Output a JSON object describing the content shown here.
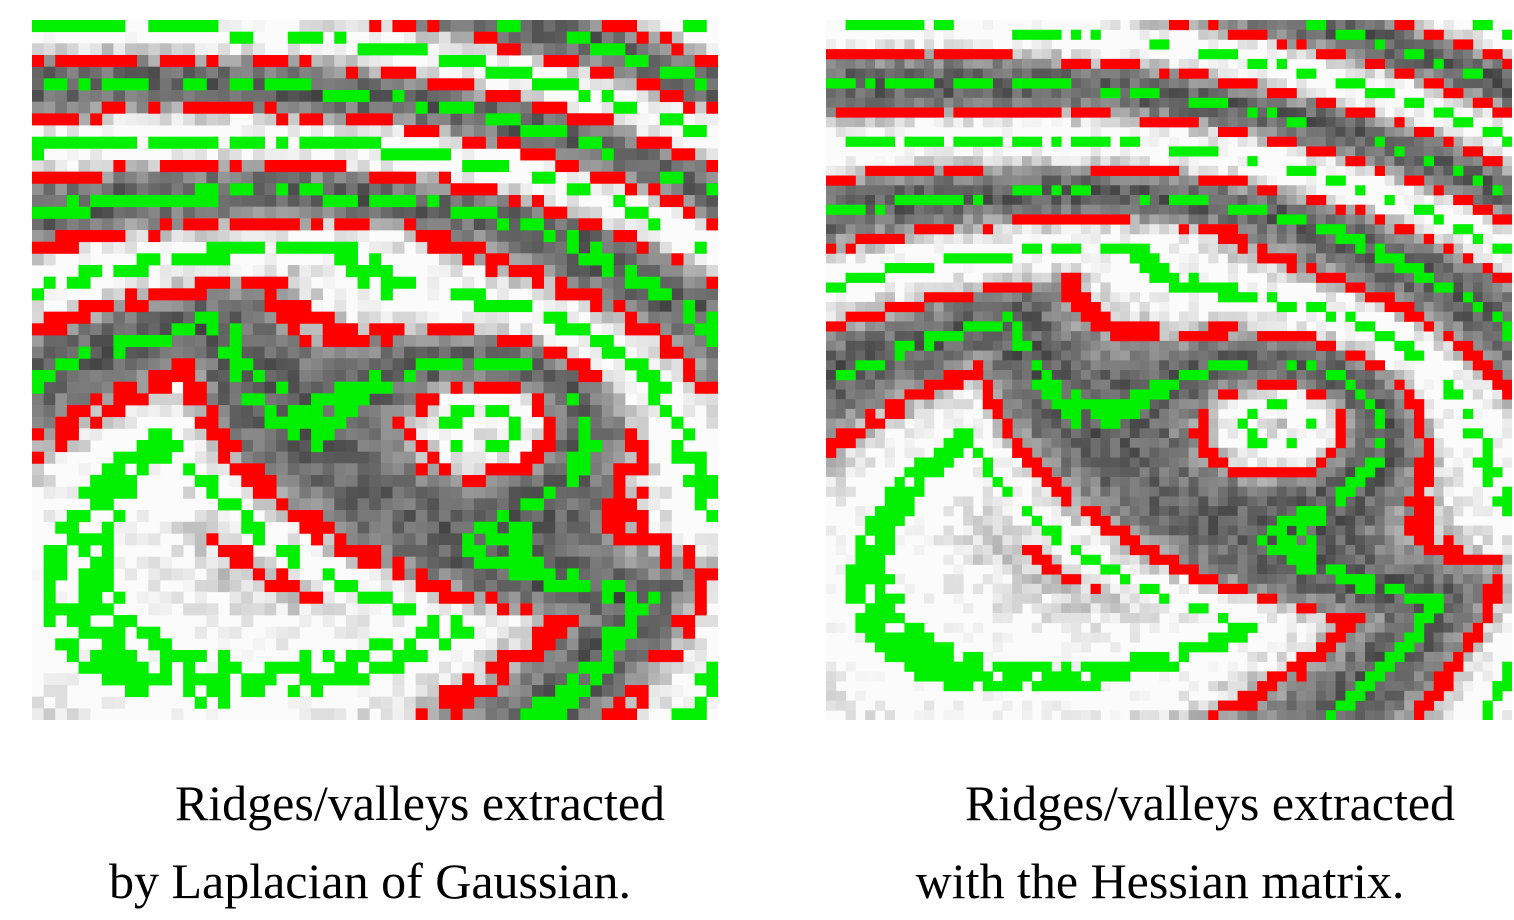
{
  "colors": {
    "ridge": "#00f000",
    "valley": "#ff0000",
    "fingerprint_dark": "#5a5a5a",
    "fingerprint_light": "#cfcfcf",
    "background": "#ffffff"
  },
  "figures": [
    {
      "id": "left",
      "method": "laplacian-of-gaussian",
      "caption_line1": "Ridges/valleys extracted",
      "caption_line2": "by Laplacian of Gaussian."
    },
    {
      "id": "right",
      "method": "hessian-matrix",
      "caption_line1": "Ridges/valleys extracted",
      "caption_line2": "with the Hessian matrix."
    }
  ]
}
